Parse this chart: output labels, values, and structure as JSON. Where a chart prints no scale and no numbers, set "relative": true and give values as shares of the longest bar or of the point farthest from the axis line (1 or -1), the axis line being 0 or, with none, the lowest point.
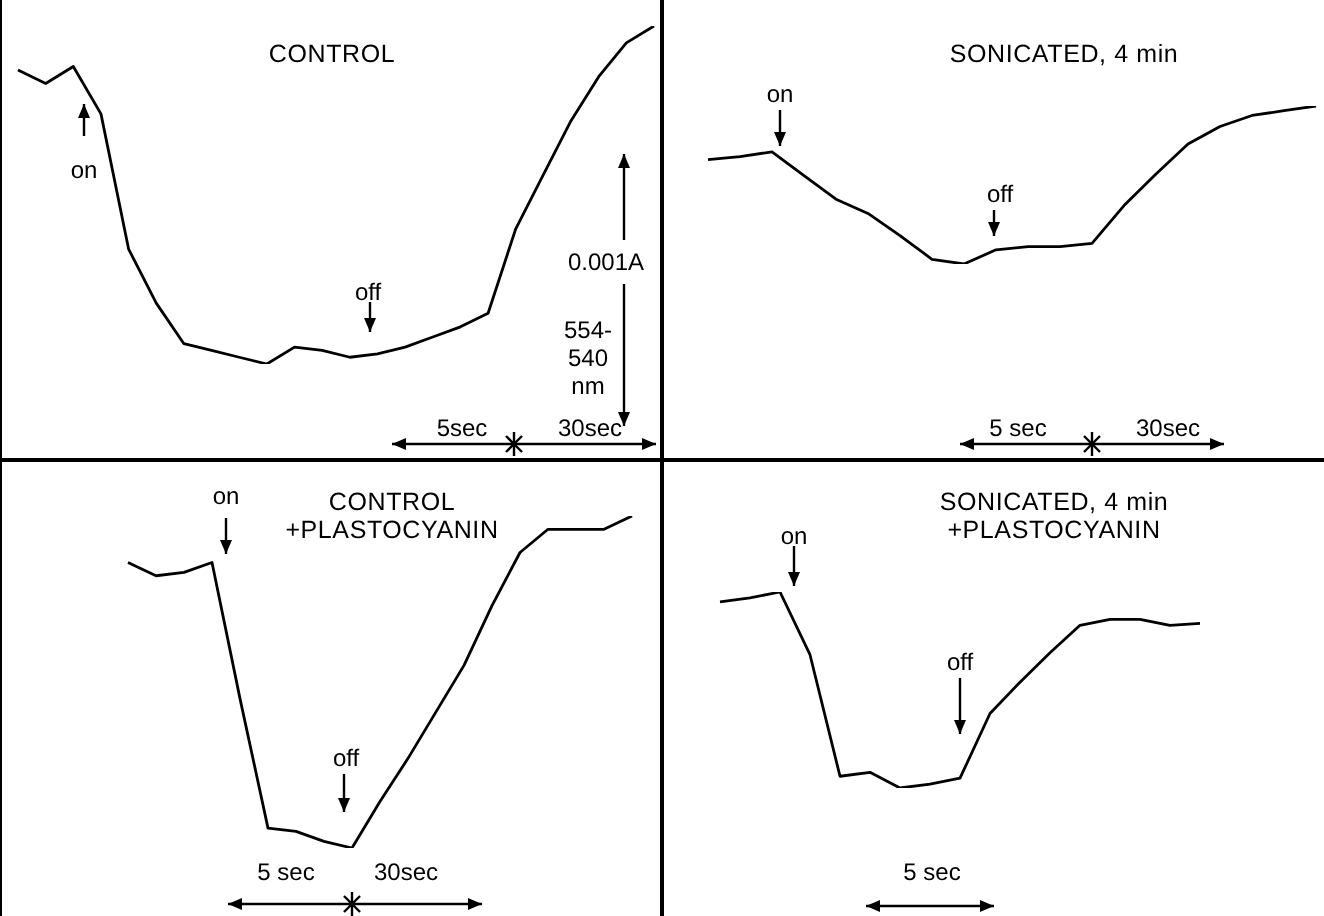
{
  "chart_data": [
    {
      "type": "line",
      "relative": true,
      "title": "CONTROL",
      "categories": [
        null,
        null,
        null,
        null,
        null,
        null,
        null,
        null,
        null,
        null,
        null,
        null,
        null,
        null,
        null,
        null,
        null,
        null,
        null,
        null,
        null,
        null,
        null,
        null
      ],
      "series": [
        {
          "color": "#000000",
          "values": [
            0.87,
            0.83,
            0.88,
            0.74,
            0.34,
            0.18,
            0.06,
            0.04,
            0.02,
            0,
            0.05,
            0.04,
            0.02,
            0.03,
            0.05,
            0.08,
            0.11,
            0.15,
            0.4,
            0.56,
            0.72,
            0.85,
            0.95,
            1
          ]
        }
      ],
      "annotations": [
        "on",
        "off",
        "0.001A",
        "554-540 nm",
        "5sec",
        "30sec"
      ]
    },
    {
      "type": "line",
      "relative": true,
      "title": "SONICATED, 4 min",
      "categories": [
        null,
        null,
        null,
        null,
        null,
        null,
        null,
        null,
        null,
        null,
        null,
        null,
        null,
        null,
        null,
        null,
        null,
        null,
        null,
        null
      ],
      "series": [
        {
          "color": "#000000",
          "values": [
            0.66,
            0.68,
            0.71,
            0.56,
            0.41,
            0.32,
            0.18,
            0.03,
            0,
            0.09,
            0.11,
            0.11,
            0.13,
            0.37,
            0.57,
            0.76,
            0.87,
            0.94,
            0.97,
            1
          ]
        }
      ],
      "annotations": [
        "on",
        "off",
        "5 sec",
        "30sec"
      ]
    },
    {
      "type": "line",
      "relative": true,
      "title": "CONTROL +PLASTOCYANIN",
      "categories": [
        null,
        null,
        null,
        null,
        null,
        null,
        null,
        null,
        null,
        null,
        null,
        null,
        null,
        null,
        null,
        null,
        null,
        null,
        null
      ],
      "series": [
        {
          "color": "#000000",
          "values": [
            0.86,
            0.82,
            0.83,
            0.86,
            0.45,
            0.06,
            0.05,
            0.02,
            0,
            0.14,
            0.27,
            0.41,
            0.55,
            0.73,
            0.89,
            0.96,
            0.96,
            0.96,
            1
          ]
        }
      ],
      "annotations": [
        "on",
        "off",
        "5 sec",
        "30sec"
      ]
    },
    {
      "type": "line",
      "relative": true,
      "title": "SONICATED, 4 min +PLASTOCYANIN",
      "categories": [
        null,
        null,
        null,
        null,
        null,
        null,
        null,
        null,
        null,
        null,
        null,
        null,
        null,
        null,
        null,
        null,
        null
      ],
      "series": [
        {
          "color": "#000000",
          "values": [
            0.95,
            0.97,
            1,
            0.68,
            0.06,
            0.08,
            0,
            0.02,
            0.05,
            0.38,
            0.54,
            0.69,
            0.83,
            0.86,
            0.86,
            0.83,
            0.84
          ]
        }
      ],
      "annotations": [
        "on",
        "off",
        "5 sec"
      ]
    }
  ]
}
